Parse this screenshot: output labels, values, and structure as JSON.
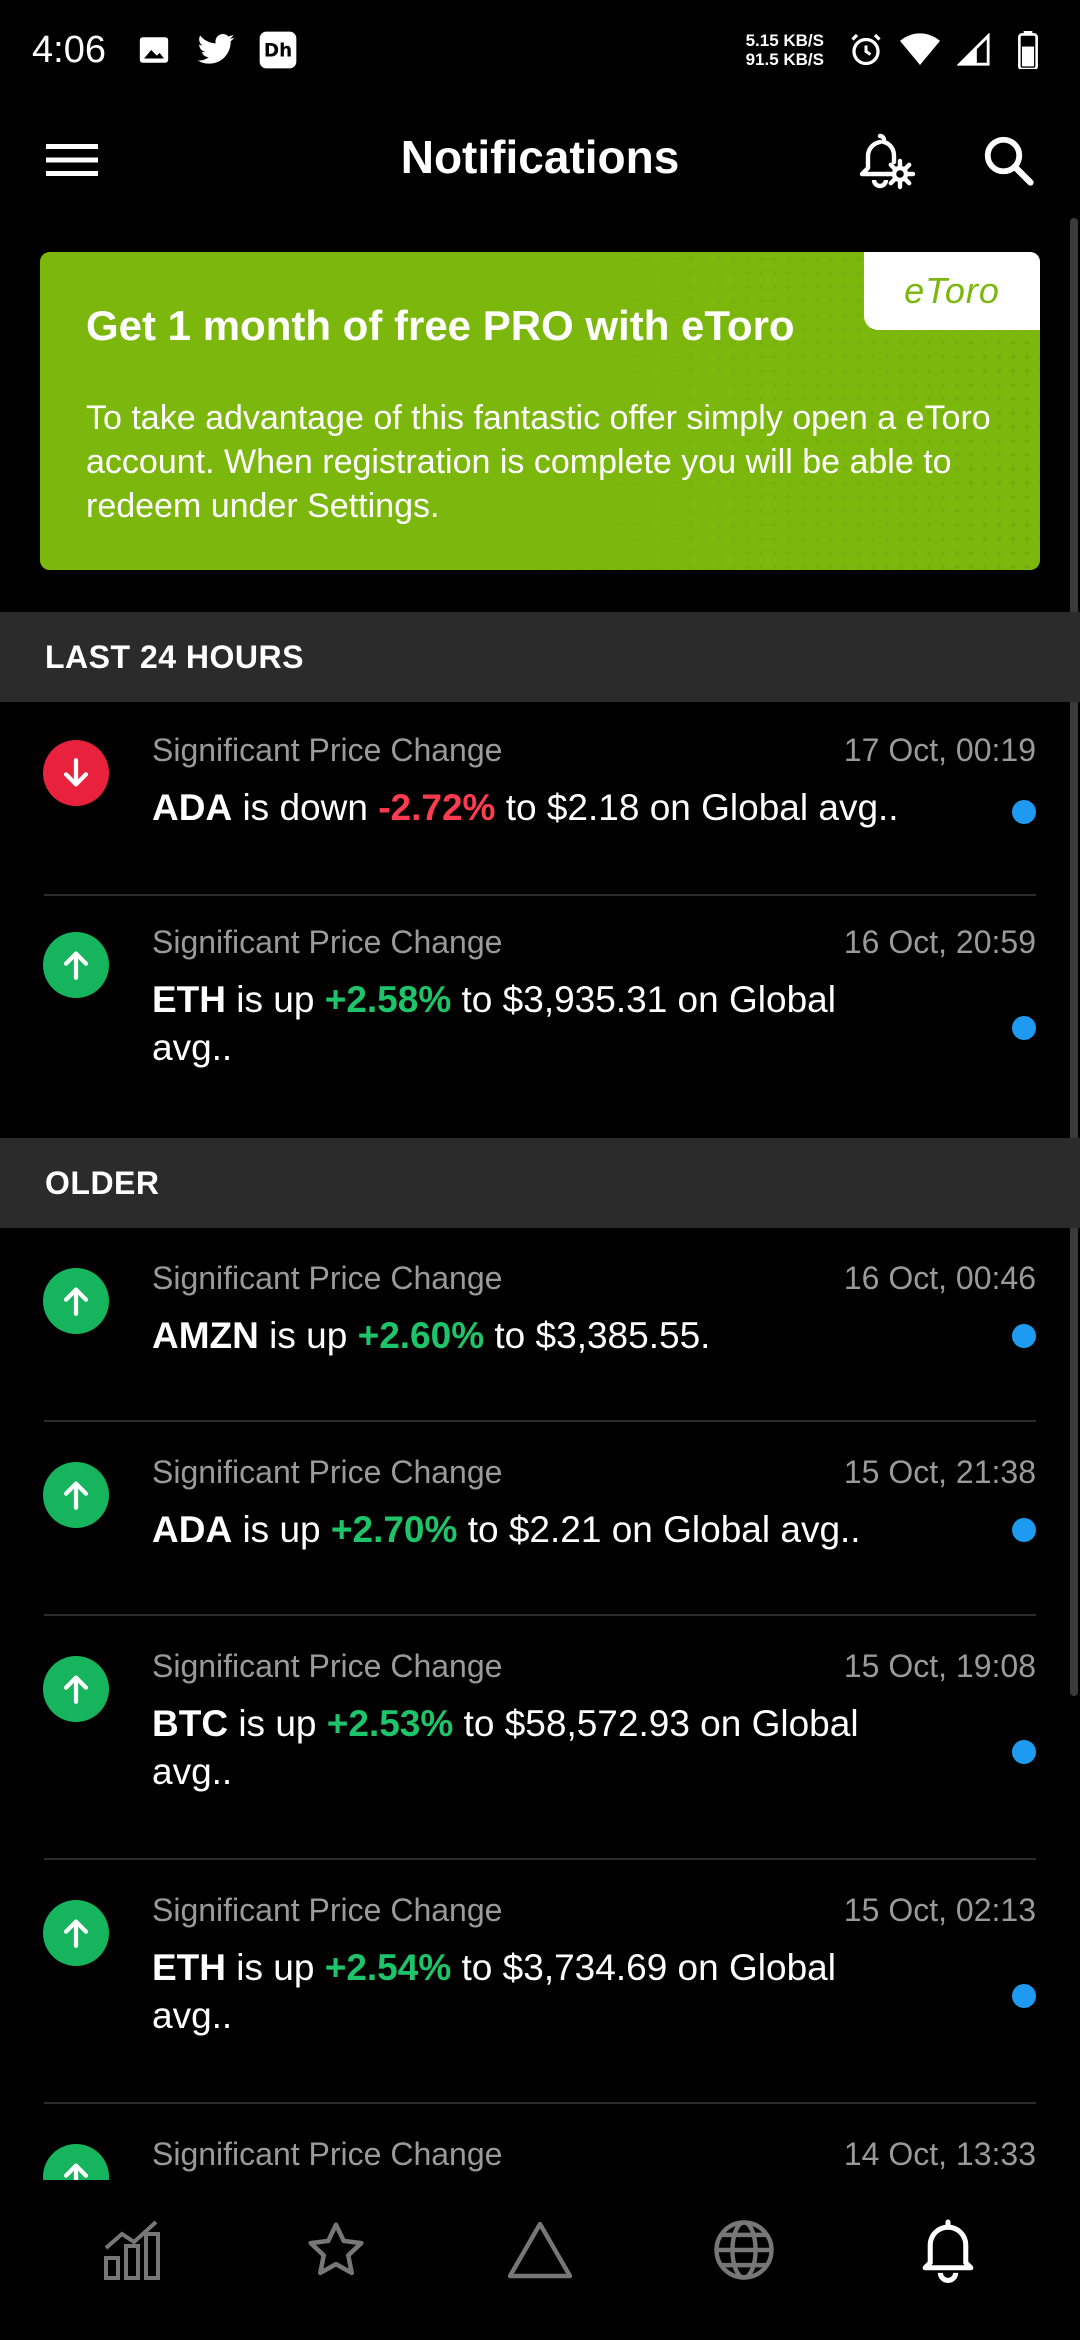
{
  "status_bar": {
    "time": "4:06",
    "net_up": "5.15 KB/S",
    "net_down": "91.5 KB/S",
    "icons": [
      "image-icon",
      "twitter-icon",
      "hotstar-icon",
      "alarm-icon",
      "wifi-icon",
      "signal-icon",
      "battery-icon"
    ]
  },
  "app_bar": {
    "title": "Notifications"
  },
  "promo": {
    "title": "Get 1 month of free PRO with eToro",
    "body": "To take advantage of this fantastic offer simply open a eToro account. When registration is complete you will be able to redeem under Settings.",
    "brand": "eToro",
    "brand_color": "#7cb70e"
  },
  "sections": [
    {
      "header": "LAST 24 HOURS",
      "items": [
        {
          "type": "Significant Price Change",
          "time": "17 Oct, 00:19",
          "direction": "down",
          "symbol": "ADA",
          "verb": " is down ",
          "pct": "-2.72%",
          "rest": " to $2.18 on Global avg.."
        },
        {
          "type": "Significant Price Change",
          "time": "16 Oct, 20:59",
          "direction": "up",
          "symbol": "ETH",
          "verb": " is up ",
          "pct": "+2.58%",
          "rest": " to $3,935.31 on Global avg.."
        }
      ]
    },
    {
      "header": "OLDER",
      "items": [
        {
          "type": "Significant Price Change",
          "time": "16 Oct, 00:46",
          "direction": "up",
          "symbol": "AMZN",
          "verb": " is up ",
          "pct": "+2.60%",
          "rest": " to $3,385.55."
        },
        {
          "type": "Significant Price Change",
          "time": "15 Oct, 21:38",
          "direction": "up",
          "symbol": "ADA",
          "verb": " is up ",
          "pct": "+2.70%",
          "rest": " to $2.21 on Global avg.."
        },
        {
          "type": "Significant Price Change",
          "time": "15 Oct, 19:08",
          "direction": "up",
          "symbol": "BTC",
          "verb": " is up ",
          "pct": "+2.53%",
          "rest": " to $58,572.93 on Global avg.."
        },
        {
          "type": "Significant Price Change",
          "time": "15 Oct, 02:13",
          "direction": "up",
          "symbol": "ETH",
          "verb": " is up ",
          "pct": "+2.54%",
          "rest": " to $3,734.69 on Global avg.."
        },
        {
          "type": "Significant Price Change",
          "time": "14 Oct, 13:33",
          "direction": "up",
          "symbol": "",
          "verb": "",
          "pct": "",
          "rest": ""
        }
      ]
    }
  ],
  "colors": {
    "down": "#e8213c",
    "up": "#16b45c",
    "unread": "#1e9bf0"
  },
  "bottom_nav": [
    "chart-icon",
    "star-icon",
    "triangle-icon",
    "globe-icon",
    "bell-icon"
  ]
}
